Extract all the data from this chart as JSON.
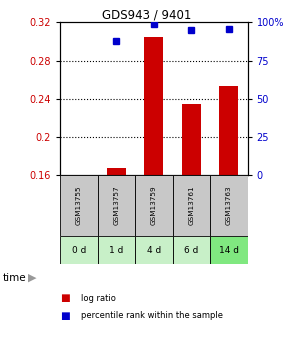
{
  "title": "GDS943 / 9401",
  "samples": [
    "GSM13755",
    "GSM13757",
    "GSM13759",
    "GSM13761",
    "GSM13763"
  ],
  "time_labels": [
    "0 d",
    "1 d",
    "4 d",
    "6 d",
    "14 d"
  ],
  "log_ratio": [
    null,
    0.167,
    0.305,
    0.234,
    0.253
  ],
  "percentile_rank": [
    null,
    88,
    99,
    95,
    96
  ],
  "ylim_left": [
    0.16,
    0.32
  ],
  "ylim_right": [
    0,
    100
  ],
  "yticks_left": [
    0.16,
    0.2,
    0.24,
    0.28,
    0.32
  ],
  "ytick_labels_left": [
    "0.16",
    "0.2",
    "0.24",
    "0.28",
    "0.32"
  ],
  "yticks_right": [
    0,
    25,
    50,
    75,
    100
  ],
  "ytick_labels_right": [
    "0",
    "25",
    "50",
    "75",
    "100%"
  ],
  "bar_color": "#cc0000",
  "dot_color": "#0000cc",
  "bar_width": 0.5,
  "bg_color": "#ffffff",
  "sample_bg": "#c8c8c8",
  "time_bg_colors": [
    "#c8f0c8",
    "#c8f0c8",
    "#c8f0c8",
    "#c8f0c8",
    "#80e880"
  ],
  "legend_bar_label": "log ratio",
  "legend_dot_label": "percentile rank within the sample"
}
